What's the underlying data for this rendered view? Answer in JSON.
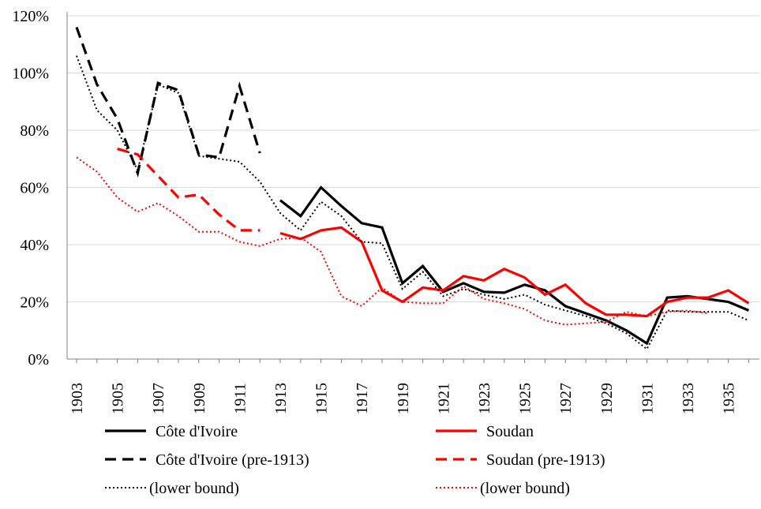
{
  "chart_data": {
    "type": "line",
    "title": "",
    "xlabel": "",
    "ylabel": "",
    "ylim": [
      0,
      1.2
    ],
    "xlim": [
      1903,
      1936
    ],
    "y_ticks": [
      0,
      0.2,
      0.4,
      0.6,
      0.8,
      1.0,
      1.2
    ],
    "y_tick_labels": [
      "0%",
      "20%",
      "40%",
      "60%",
      "80%",
      "100%",
      "120%"
    ],
    "x_ticks": [
      1903,
      1905,
      1907,
      1909,
      1911,
      1913,
      1915,
      1917,
      1919,
      1921,
      1923,
      1925,
      1927,
      1929,
      1931,
      1933,
      1935
    ],
    "x_tick_labels": [
      "1903",
      "1905",
      "1907",
      "1909",
      "1911",
      "1913",
      "1915",
      "1917",
      "1919",
      "1921",
      "1923",
      "1925",
      "1927",
      "1929",
      "1931",
      "1933",
      "1935"
    ],
    "grid": "horizontal",
    "legend_position": "bottom",
    "series": [
      {
        "name": "Côte d'Ivoire",
        "color": "#000000",
        "style": "solid",
        "x": [
          1913,
          1914,
          1915,
          1916,
          1917,
          1918,
          1919,
          1920,
          1921,
          1922,
          1923,
          1924,
          1925,
          1926,
          1927,
          1928,
          1929,
          1930,
          1931,
          1932,
          1933,
          1934,
          1935,
          1936
        ],
        "values": [
          0.555,
          0.5,
          0.6,
          0.535,
          0.475,
          0.46,
          0.265,
          0.325,
          0.235,
          0.265,
          0.235,
          0.232,
          0.26,
          0.24,
          0.185,
          0.16,
          0.135,
          0.1,
          0.055,
          0.215,
          0.22,
          0.21,
          0.2,
          0.17
        ]
      },
      {
        "name": "Soudan",
        "color": "#ff0000",
        "style": "solid",
        "x": [
          1913,
          1914,
          1915,
          1916,
          1917,
          1918,
          1919,
          1920,
          1921,
          1922,
          1923,
          1924,
          1925,
          1926,
          1927,
          1928,
          1929,
          1930,
          1931,
          1932,
          1933,
          1934,
          1935,
          1936
        ],
        "values": [
          0.44,
          0.42,
          0.45,
          0.46,
          0.41,
          0.24,
          0.2,
          0.25,
          0.24,
          0.29,
          0.275,
          0.315,
          0.285,
          0.225,
          0.26,
          0.195,
          0.155,
          0.155,
          0.15,
          0.2,
          0.215,
          0.215,
          0.24,
          0.195
        ]
      },
      {
        "name": "Côte d'Ivoire (pre-1913)",
        "color": "#000000",
        "style": "dashed",
        "x": [
          1903,
          1904,
          1905,
          1906,
          1907,
          1908,
          1909,
          1910,
          1911,
          1912
        ],
        "values": [
          1.16,
          0.96,
          0.84,
          0.65,
          0.965,
          0.94,
          0.715,
          0.705,
          0.955,
          0.72
        ]
      },
      {
        "name": "Soudan (pre-1913)",
        "color": "#ff0000",
        "style": "dashed",
        "x": [
          1905,
          1906,
          1907,
          1908,
          1909,
          1910,
          1911,
          1912
        ],
        "values": [
          0.735,
          0.715,
          0.64,
          0.565,
          0.575,
          0.505,
          0.45,
          0.45
        ]
      },
      {
        "name": "(lower bound)",
        "color": "#000000",
        "style": "dotted",
        "x": [
          1903,
          1904,
          1905,
          1906,
          1907,
          1908,
          1909,
          1910,
          1911,
          1912,
          1913,
          1914,
          1915,
          1916,
          1917,
          1918,
          1919,
          1920,
          1921,
          1922,
          1923,
          1924,
          1925,
          1926,
          1927,
          1928,
          1929,
          1930,
          1931,
          1932,
          1933,
          1934,
          1935,
          1936
        ],
        "values": [
          1.06,
          0.87,
          0.8,
          0.66,
          0.96,
          0.93,
          0.71,
          0.7,
          0.69,
          0.62,
          0.51,
          0.45,
          0.55,
          0.5,
          0.41,
          0.405,
          0.245,
          0.305,
          0.22,
          0.245,
          0.225,
          0.21,
          0.225,
          0.19,
          0.17,
          0.15,
          0.125,
          0.09,
          0.035,
          0.17,
          0.165,
          0.165,
          0.165,
          0.135
        ]
      },
      {
        "name": "(lower bound)",
        "color": "#ff0000",
        "style": "dotted",
        "x": [
          1903,
          1904,
          1905,
          1906,
          1907,
          1908,
          1909,
          1910,
          1911,
          1912,
          1913,
          1914,
          1915,
          1916,
          1917,
          1918,
          1919,
          1920,
          1921,
          1922,
          1923,
          1924,
          1925,
          1926,
          1927,
          1928,
          1929,
          1930,
          1931,
          1932,
          1933,
          1934,
          1935,
          1936
        ],
        "values": [
          0.705,
          0.655,
          0.565,
          0.515,
          0.545,
          0.5,
          0.445,
          0.445,
          0.41,
          0.395,
          0.42,
          0.425,
          0.375,
          0.22,
          0.185,
          0.25,
          0.2,
          0.195,
          0.195,
          0.255,
          0.21,
          0.195,
          0.175,
          0.135,
          0.12,
          0.125,
          0.13,
          0.165,
          0.15,
          0.165,
          0.17,
          0.16,
          null,
          null
        ]
      }
    ]
  },
  "legend": {
    "items": [
      {
        "label": "Côte d'Ivoire",
        "color": "#000000",
        "style": "solid"
      },
      {
        "label": "Soudan",
        "color": "#ff0000",
        "style": "solid"
      },
      {
        "label": "Côte d'Ivoire (pre-1913)",
        "color": "#000000",
        "style": "dashed"
      },
      {
        "label": "Soudan (pre-1913)",
        "color": "#ff0000",
        "style": "dashed"
      },
      {
        "label": "(lower bound)",
        "color": "#000000",
        "style": "dotted"
      },
      {
        "label": "(lower bound)",
        "color": "#ff0000",
        "style": "dotted"
      }
    ]
  }
}
